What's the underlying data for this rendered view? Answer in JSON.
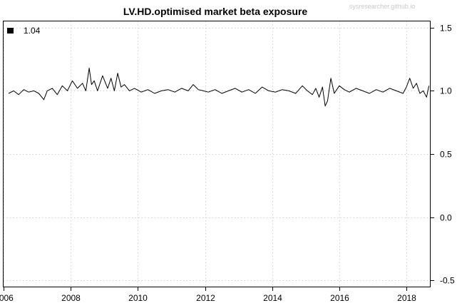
{
  "chart_data": {
    "type": "line",
    "title": "LV.HD.optimised market beta exposure",
    "watermark": "sysresearcher.github.io",
    "xlabel": "",
    "ylabel": "",
    "xlim": [
      2006.0,
      2018.7
    ],
    "ylim": [
      -0.55,
      1.55
    ],
    "x_ticks": [
      2006,
      2008,
      2010,
      2012,
      2014,
      2016,
      2018
    ],
    "x_tick_labels": [
      "2006",
      "2008",
      "2010",
      "2012",
      "2014",
      "2016",
      "2018"
    ],
    "y_ticks": [
      1.5,
      1.0,
      0.5,
      0.0,
      -0.5
    ],
    "y_tick_labels": [
      "1.5",
      "1.0",
      "0.5",
      "0.0",
      "-0.5"
    ],
    "y_axis_side": "right",
    "grid": true,
    "legend": {
      "position": "top-left",
      "entries": [
        {
          "label": "1.04",
          "color": "#000000"
        }
      ]
    },
    "series": [
      {
        "color": "#000000",
        "x": [
          2006.15,
          2006.3,
          2006.45,
          2006.6,
          2006.75,
          2006.9,
          2007.05,
          2007.2,
          2007.3,
          2007.45,
          2007.6,
          2007.75,
          2007.9,
          2008.05,
          2008.2,
          2008.35,
          2008.45,
          2008.55,
          2008.62,
          2008.7,
          2008.8,
          2008.95,
          2009.1,
          2009.2,
          2009.3,
          2009.4,
          2009.5,
          2009.6,
          2009.75,
          2009.9,
          2010.1,
          2010.3,
          2010.5,
          2010.7,
          2010.9,
          2011.1,
          2011.3,
          2011.5,
          2011.65,
          2011.8,
          2011.95,
          2012.1,
          2012.3,
          2012.5,
          2012.7,
          2012.9,
          2013.1,
          2013.3,
          2013.5,
          2013.7,
          2013.9,
          2014.1,
          2014.3,
          2014.5,
          2014.7,
          2014.9,
          2015.05,
          2015.2,
          2015.3,
          2015.4,
          2015.5,
          2015.58,
          2015.65,
          2015.75,
          2015.85,
          2016.0,
          2016.15,
          2016.3,
          2016.5,
          2016.7,
          2016.9,
          2017.1,
          2017.3,
          2017.5,
          2017.7,
          2017.9,
          2018.0,
          2018.1,
          2018.2,
          2018.3,
          2018.4,
          2018.5,
          2018.6,
          2018.67
        ],
        "y": [
          0.98,
          1.0,
          0.97,
          1.01,
          0.99,
          1.0,
          0.98,
          0.93,
          1.0,
          1.02,
          0.97,
          1.04,
          1.0,
          1.08,
          1.02,
          1.06,
          1.0,
          1.18,
          1.05,
          1.08,
          1.0,
          1.12,
          1.02,
          1.1,
          1.0,
          1.14,
          1.03,
          1.05,
          1.0,
          1.02,
          0.99,
          1.01,
          0.98,
          1.0,
          1.01,
          0.99,
          1.02,
          1.0,
          1.05,
          1.01,
          1.0,
          0.99,
          1.01,
          0.98,
          1.0,
          1.02,
          0.99,
          1.01,
          0.98,
          1.03,
          1.0,
          0.99,
          1.01,
          1.0,
          0.98,
          1.04,
          1.0,
          0.97,
          1.02,
          0.95,
          1.03,
          0.88,
          0.92,
          1.1,
          0.98,
          1.04,
          1.01,
          0.99,
          1.02,
          1.0,
          0.98,
          1.01,
          0.99,
          1.02,
          1.0,
          0.98,
          1.03,
          1.1,
          1.02,
          1.06,
          0.98,
          1.0,
          0.95,
          1.04
        ]
      }
    ]
  }
}
